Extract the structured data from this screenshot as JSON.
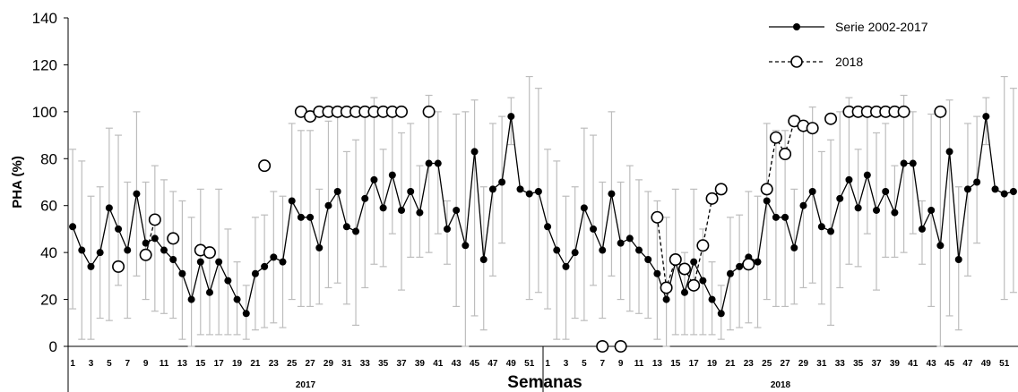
{
  "chart_data": {
    "type": "line",
    "xlabel": "Semanas",
    "ylabel": "PHA (%)",
    "ylim": [
      0,
      140
    ],
    "yticks": [
      0,
      20,
      40,
      60,
      80,
      100,
      120,
      140
    ],
    "grid": false,
    "legend_position": "top-right",
    "groups": [
      {
        "label": "2017",
        "weeks": 52
      },
      {
        "label": "2018",
        "weeks": 52
      }
    ],
    "x_tick_labels": [
      "1",
      "3",
      "5",
      "7",
      "9",
      "11",
      "13",
      "15",
      "17",
      "19",
      "21",
      "23",
      "25",
      "27",
      "29",
      "31",
      "33",
      "35",
      "37",
      "39",
      "41",
      "43",
      "45",
      "47",
      "49",
      "51"
    ],
    "series": [
      {
        "name": "Serie 2002-2017",
        "style": "solid-filled",
        "color": "#000000",
        "values": [
          51,
          41,
          34,
          40,
          59,
          50,
          41,
          65,
          44,
          46,
          41,
          37,
          31,
          20,
          36,
          23,
          36,
          28,
          20,
          14,
          31,
          34,
          38,
          36,
          62,
          55,
          55,
          42,
          60,
          66,
          51,
          49,
          63,
          71,
          59,
          73,
          58,
          66,
          57,
          78,
          78,
          50,
          58,
          43,
          83,
          37,
          67,
          70,
          98,
          67,
          65,
          66,
          51,
          41,
          34,
          40,
          59,
          50,
          41,
          65,
          44,
          46,
          41,
          37,
          31,
          20,
          36,
          23,
          36,
          28,
          20,
          14,
          31,
          34,
          38,
          36,
          62,
          55,
          55,
          42,
          60,
          66,
          51,
          49,
          63,
          71,
          59,
          73,
          58,
          66,
          57,
          78,
          78,
          50,
          58,
          43,
          83,
          37,
          67,
          70,
          98,
          67,
          65,
          66
        ],
        "error_low": [
          16,
          3,
          3,
          12,
          11,
          26,
          12,
          30,
          20,
          15,
          14,
          12,
          3,
          0,
          5,
          5,
          5,
          5,
          5,
          3,
          7,
          8,
          10,
          8,
          20,
          17,
          17,
          18,
          25,
          27,
          18,
          9,
          25,
          35,
          34,
          48,
          24,
          38,
          38,
          40,
          48,
          35,
          17,
          0,
          13,
          7,
          30,
          44,
          86,
          67,
          20,
          23,
          16,
          3,
          3,
          12,
          11,
          26,
          12,
          30,
          20,
          15,
          14,
          12,
          3,
          0,
          5,
          5,
          5,
          5,
          5,
          3,
          7,
          8,
          10,
          8,
          20,
          17,
          17,
          18,
          25,
          27,
          18,
          9,
          25,
          35,
          34,
          48,
          24,
          38,
          38,
          40,
          48,
          35,
          17,
          0,
          13,
          7,
          30,
          44,
          86,
          67,
          20,
          23
        ],
        "error_high": [
          84,
          79,
          64,
          68,
          93,
          90,
          70,
          100,
          70,
          77,
          71,
          66,
          62,
          55,
          67,
          40,
          67,
          50,
          36,
          26,
          55,
          56,
          66,
          64,
          95,
          92,
          92,
          67,
          96,
          102,
          83,
          88,
          100,
          106,
          84,
          98,
          91,
          95,
          77,
          107,
          100,
          62,
          99,
          100,
          105,
          68,
          95,
          98,
          106,
          67,
          115,
          110,
          84,
          79,
          64,
          68,
          93,
          90,
          70,
          100,
          70,
          77,
          71,
          66,
          62,
          55,
          67,
          40,
          67,
          50,
          36,
          26,
          55,
          56,
          66,
          64,
          95,
          92,
          92,
          67,
          96,
          102,
          83,
          88,
          100,
          106,
          84,
          98,
          91,
          95,
          77,
          107,
          100,
          62,
          99,
          100,
          105,
          68,
          95,
          98,
          106,
          67,
          115,
          110
        ]
      },
      {
        "name": "2018",
        "style": "dashed-open",
        "color": "#000000",
        "values": [
          null,
          null,
          null,
          null,
          null,
          34,
          null,
          null,
          39,
          54,
          null,
          46,
          null,
          null,
          41,
          40,
          null,
          null,
          null,
          null,
          null,
          77,
          null,
          null,
          null,
          100,
          98,
          100,
          100,
          100,
          100,
          100,
          100,
          100,
          100,
          100,
          100,
          null,
          null,
          100,
          null,
          null,
          null,
          null,
          null,
          null,
          null,
          null,
          null,
          null,
          null,
          null,
          null,
          null,
          null,
          null,
          null,
          null,
          0,
          null,
          0,
          null,
          null,
          null,
          55,
          25,
          37,
          33,
          26,
          43,
          63,
          67,
          null,
          null,
          35,
          null,
          67,
          89,
          82,
          96,
          94,
          93,
          null,
          97,
          null,
          100,
          100,
          100,
          100,
          100,
          100,
          100,
          null,
          null,
          null,
          100,
          null,
          null,
          null,
          null,
          null,
          null,
          null,
          null
        ],
        "marker_only": [
          5,
          11,
          21,
          39,
          58,
          60,
          74,
          83,
          92
        ]
      }
    ]
  }
}
